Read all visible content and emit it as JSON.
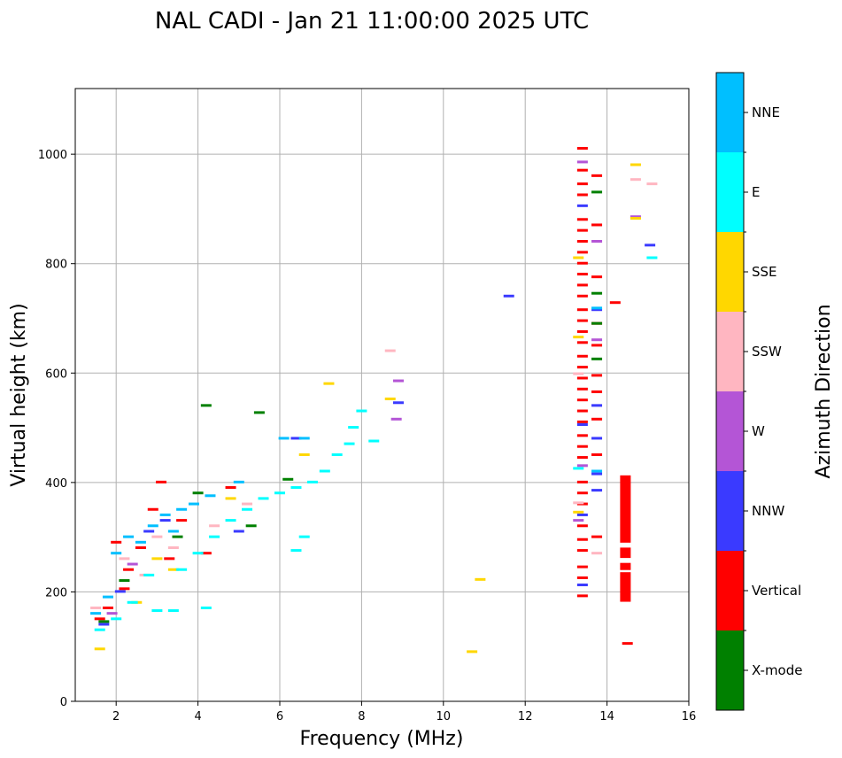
{
  "chart_data": {
    "type": "scatter",
    "title": "NAL CADI - Jan 21 11:00:00 2025 UTC",
    "xlabel": "Frequency (MHz)",
    "ylabel": "Virtual height (km)",
    "xlim": [
      1,
      16
    ],
    "ylim": [
      0,
      1120
    ],
    "xticks": [
      2,
      4,
      6,
      8,
      10,
      12,
      14,
      16
    ],
    "yticks": [
      0,
      200,
      400,
      600,
      800,
      1000
    ],
    "grid": true,
    "colorbar": {
      "label": "Azimuth Direction",
      "categories": [
        {
          "name": "X-mode",
          "color": "#008000"
        },
        {
          "name": "Vertical",
          "color": "#ff0000"
        },
        {
          "name": "NNW",
          "color": "#3a3aff"
        },
        {
          "name": "W",
          "color": "#b455d6"
        },
        {
          "name": "SSW",
          "color": "#ffb6c1"
        },
        {
          "name": "SSE",
          "color": "#ffd700"
        },
        {
          "name": "E",
          "color": "#00ffff"
        },
        {
          "name": "NNE",
          "color": "#00bfff"
        }
      ]
    },
    "series": [
      {
        "name": "Vertical",
        "points": [
          [
            1.6,
            150
          ],
          [
            1.8,
            170
          ],
          [
            2.0,
            290
          ],
          [
            2.2,
            205
          ],
          [
            2.3,
            240
          ],
          [
            2.6,
            280
          ],
          [
            2.9,
            350
          ],
          [
            3.1,
            400
          ],
          [
            3.3,
            260
          ],
          [
            3.6,
            330
          ],
          [
            4.2,
            270
          ],
          [
            4.8,
            390
          ],
          [
            13.4,
            1010
          ],
          [
            13.4,
            970
          ],
          [
            13.4,
            945
          ],
          [
            13.4,
            925
          ],
          [
            13.4,
            880
          ],
          [
            13.4,
            860
          ],
          [
            13.4,
            840
          ],
          [
            13.4,
            820
          ],
          [
            13.4,
            800
          ],
          [
            13.4,
            780
          ],
          [
            13.4,
            760
          ],
          [
            13.4,
            740
          ],
          [
            13.4,
            715
          ],
          [
            13.4,
            695
          ],
          [
            13.4,
            675
          ],
          [
            13.4,
            655
          ],
          [
            13.4,
            630
          ],
          [
            13.4,
            610
          ],
          [
            13.4,
            590
          ],
          [
            13.4,
            570
          ],
          [
            13.4,
            550
          ],
          [
            13.4,
            530
          ],
          [
            13.4,
            510
          ],
          [
            13.4,
            485
          ],
          [
            13.4,
            465
          ],
          [
            13.4,
            445
          ],
          [
            13.4,
            400
          ],
          [
            13.4,
            380
          ],
          [
            13.4,
            360
          ],
          [
            13.4,
            320
          ],
          [
            13.4,
            295
          ],
          [
            13.4,
            275
          ],
          [
            13.4,
            245
          ],
          [
            13.4,
            225
          ],
          [
            13.4,
            192
          ],
          [
            13.75,
            960
          ],
          [
            13.75,
            870
          ],
          [
            13.75,
            775
          ],
          [
            13.75,
            690
          ],
          [
            13.75,
            650
          ],
          [
            13.75,
            595
          ],
          [
            13.75,
            565
          ],
          [
            13.75,
            515
          ],
          [
            13.75,
            450
          ],
          [
            13.75,
            300
          ],
          [
            14.2,
            728
          ],
          [
            14.5,
            105
          ]
        ]
      },
      {
        "name": "NNW",
        "points": [
          [
            1.7,
            140
          ],
          [
            2.1,
            200
          ],
          [
            2.8,
            310
          ],
          [
            3.2,
            330
          ],
          [
            5.0,
            310
          ],
          [
            6.4,
            480
          ],
          [
            8.9,
            545
          ],
          [
            11.6,
            740
          ],
          [
            13.4,
            905
          ],
          [
            13.4,
            505
          ],
          [
            13.4,
            340
          ],
          [
            13.4,
            212
          ],
          [
            13.75,
            715
          ],
          [
            13.75,
            540
          ],
          [
            13.75,
            480
          ],
          [
            13.75,
            415
          ],
          [
            13.75,
            385
          ],
          [
            15.05,
            833
          ]
        ]
      },
      {
        "name": "W",
        "points": [
          [
            1.9,
            160
          ],
          [
            2.4,
            250
          ],
          [
            8.9,
            585
          ],
          [
            8.85,
            515
          ],
          [
            13.4,
            985
          ],
          [
            13.4,
            430
          ],
          [
            13.3,
            330
          ],
          [
            13.75,
            840
          ],
          [
            13.75,
            660
          ],
          [
            14.7,
            885
          ]
        ]
      },
      {
        "name": "SSW",
        "points": [
          [
            1.5,
            170
          ],
          [
            2.2,
            260
          ],
          [
            2.7,
            230
          ],
          [
            3.0,
            300
          ],
          [
            3.4,
            280
          ],
          [
            4.4,
            320
          ],
          [
            5.2,
            360
          ],
          [
            8.7,
            640
          ],
          [
            13.3,
            598
          ],
          [
            13.3,
            362
          ],
          [
            13.75,
            270
          ],
          [
            14.7,
            953
          ],
          [
            15.1,
            945
          ]
        ]
      },
      {
        "name": "SSE",
        "points": [
          [
            1.6,
            95
          ],
          [
            2.5,
            180
          ],
          [
            3.0,
            260
          ],
          [
            3.4,
            240
          ],
          [
            4.8,
            370
          ],
          [
            6.6,
            450
          ],
          [
            7.2,
            580
          ],
          [
            8.7,
            552
          ],
          [
            10.7,
            90
          ],
          [
            10.9,
            222
          ],
          [
            13.3,
            810
          ],
          [
            13.3,
            665
          ],
          [
            13.3,
            345
          ],
          [
            14.7,
            980
          ],
          [
            14.7,
            882
          ]
        ]
      },
      {
        "name": "E",
        "points": [
          [
            1.6,
            130
          ],
          [
            2.0,
            150
          ],
          [
            2.4,
            180
          ],
          [
            2.8,
            230
          ],
          [
            3.0,
            165
          ],
          [
            3.4,
            165
          ],
          [
            3.6,
            240
          ],
          [
            4.0,
            270
          ],
          [
            4.4,
            300
          ],
          [
            4.8,
            330
          ],
          [
            5.2,
            350
          ],
          [
            5.6,
            370
          ],
          [
            6.0,
            380
          ],
          [
            6.4,
            390
          ],
          [
            6.8,
            400
          ],
          [
            7.1,
            420
          ],
          [
            7.4,
            450
          ],
          [
            7.7,
            470
          ],
          [
            7.8,
            500
          ],
          [
            8.0,
            530
          ],
          [
            8.3,
            475
          ],
          [
            6.4,
            275
          ],
          [
            6.6,
            300
          ],
          [
            4.2,
            170
          ],
          [
            15.1,
            810
          ],
          [
            13.3,
            425
          ]
        ]
      },
      {
        "name": "NNE",
        "points": [
          [
            1.5,
            160
          ],
          [
            1.8,
            190
          ],
          [
            2.0,
            270
          ],
          [
            2.3,
            300
          ],
          [
            2.6,
            290
          ],
          [
            2.9,
            320
          ],
          [
            3.2,
            340
          ],
          [
            3.4,
            310
          ],
          [
            3.6,
            350
          ],
          [
            3.9,
            360
          ],
          [
            4.3,
            375
          ],
          [
            5.0,
            400
          ],
          [
            6.1,
            480
          ],
          [
            6.6,
            480
          ],
          [
            13.75,
            718
          ],
          [
            13.75,
            420
          ]
        ]
      },
      {
        "name": "X-mode",
        "points": [
          [
            1.7,
            145
          ],
          [
            2.2,
            220
          ],
          [
            3.5,
            300
          ],
          [
            4.0,
            380
          ],
          [
            4.2,
            540
          ],
          [
            5.3,
            320
          ],
          [
            5.5,
            527
          ],
          [
            6.2,
            405
          ],
          [
            13.75,
            930
          ],
          [
            13.75,
            745
          ],
          [
            13.75,
            690
          ],
          [
            13.75,
            625
          ]
        ]
      }
    ],
    "vertical_bar_segments": [
      {
        "name": "Vertical",
        "x": 14.45,
        "y_from": 290,
        "y_to": 413
      },
      {
        "name": "Vertical",
        "x": 14.45,
        "y_from": 262,
        "y_to": 281
      },
      {
        "name": "Vertical",
        "x": 14.45,
        "y_from": 240,
        "y_to": 253
      },
      {
        "name": "Vertical",
        "x": 14.45,
        "y_from": 182,
        "y_to": 236
      }
    ]
  }
}
